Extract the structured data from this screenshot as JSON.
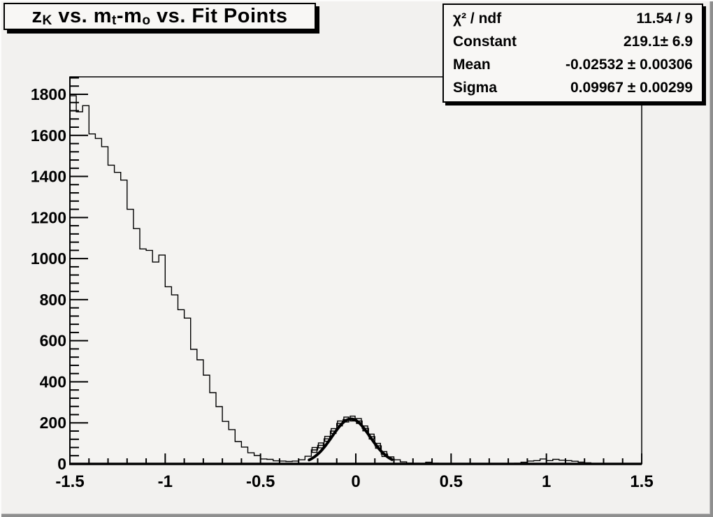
{
  "title": {
    "full": "z_K vs. m_t-m_o vs. Fit Points",
    "segments": [
      {
        "text": "z",
        "sub": false
      },
      {
        "text": "K",
        "sub": true
      },
      {
        "text": " vs. m",
        "sub": false
      },
      {
        "text": "t",
        "sub": true
      },
      {
        "text": "-m",
        "sub": false
      },
      {
        "text": "o",
        "sub": true
      },
      {
        "text": " vs. Fit Points",
        "sub": false
      }
    ]
  },
  "stats": {
    "rows": [
      {
        "label": "χ² / ndf",
        "value": "11.54 / 9"
      },
      {
        "label": "Constant",
        "value": "219.1± 6.9"
      },
      {
        "label": "Mean",
        "value": "-0.02532 ± 0.00306"
      },
      {
        "label": "Sigma",
        "value": "0.09967 ± 0.00299"
      }
    ]
  },
  "chart_data": {
    "type": "bar",
    "subtype": "histogram-with-gaussian-fit",
    "title": "z_K vs. m_t-m_o vs. Fit Points",
    "xlabel": "",
    "ylabel": "",
    "xlim": [
      -1.5,
      1.5
    ],
    "ylim": [
      0,
      1885
    ],
    "grid": false,
    "bin_start": -1.5,
    "bin_width": 0.0333333,
    "values": [
      1793,
      1715,
      1745,
      1607,
      1585,
      1545,
      1455,
      1420,
      1382,
      1240,
      1146,
      1047,
      1040,
      983,
      1017,
      863,
      823,
      751,
      710,
      558,
      507,
      432,
      347,
      279,
      207,
      167,
      109,
      82,
      54,
      41,
      24,
      22,
      15,
      14,
      12,
      14,
      20,
      37,
      68,
      90,
      122,
      160,
      197,
      216,
      221,
      209,
      173,
      133,
      88,
      48,
      34,
      20,
      10,
      4,
      3,
      2,
      8,
      3,
      2,
      1,
      1,
      1,
      1,
      1,
      1,
      1,
      1,
      1,
      1,
      2,
      3,
      8,
      14,
      16,
      24,
      16,
      22,
      18,
      16,
      13,
      9,
      5,
      2,
      0,
      0,
      0,
      0,
      0,
      0,
      0
    ],
    "x_major_ticks": [
      -1.5,
      -1,
      -0.5,
      0,
      0.5,
      1,
      1.5
    ],
    "x_major_tick_labels": [
      "-1.5",
      "-1",
      "-0.5",
      "0",
      "0.5",
      "1",
      "1.5"
    ],
    "x_minor_tick_step": 0.1,
    "y_major_ticks": [
      0,
      200,
      400,
      600,
      800,
      1000,
      1200,
      1400,
      1600,
      1800
    ],
    "y_major_tick_labels": [
      "0",
      "200",
      "400",
      "600",
      "800",
      "1000",
      "1200",
      "1400",
      "1600",
      "1800"
    ],
    "y_minor_tick_step": 40,
    "fit": {
      "type": "gaussian",
      "constant": 219.1,
      "mean": -0.02532,
      "sigma": 0.09967,
      "chi2": 11.54,
      "ndf": 9,
      "draw_range": [
        -0.245,
        0.19
      ]
    },
    "fit_point_bins": [
      38,
      39,
      40,
      41,
      42,
      43,
      44,
      45,
      46,
      47,
      48,
      49
    ],
    "colors": {
      "line": "#000000",
      "fit_curve": "#000000",
      "frame_background": "#f4f3f1",
      "canvas_background": "#f2f1ef",
      "box_background": "#f8f7f5"
    }
  }
}
